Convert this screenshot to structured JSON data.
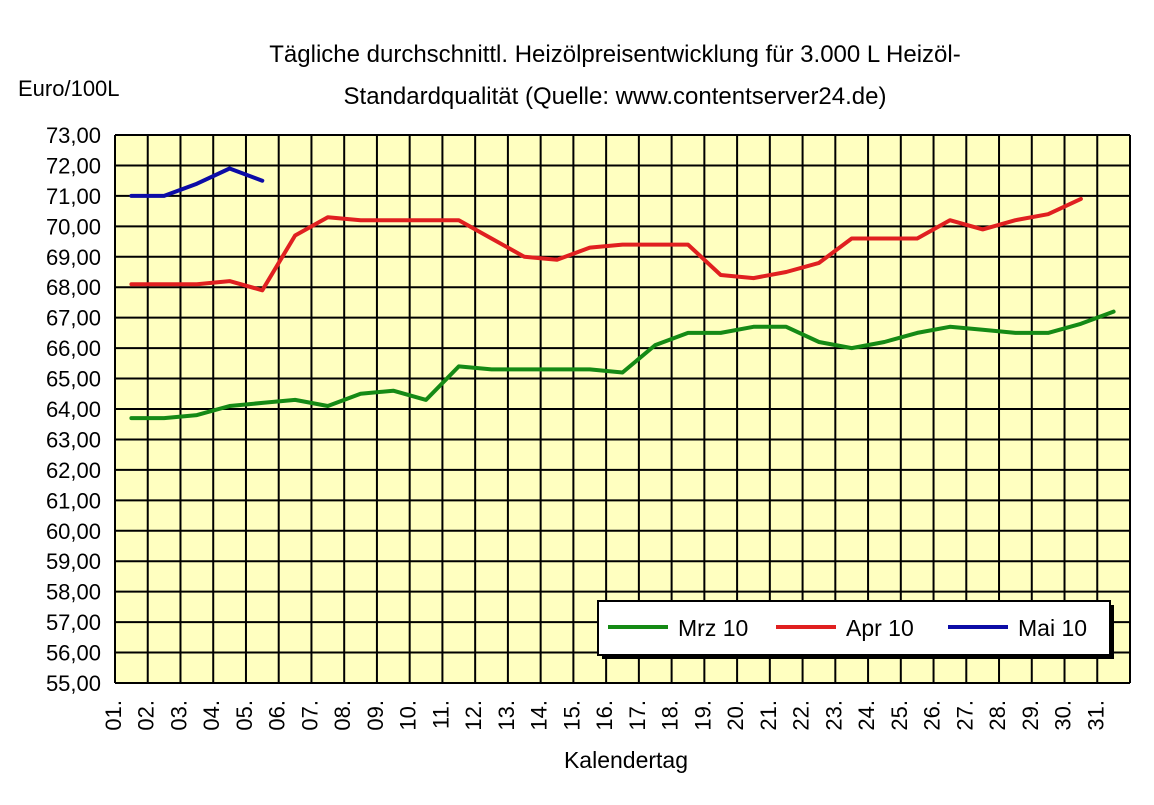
{
  "chart_data": {
    "type": "line",
    "title_line1": "Tägliche durchschnittl. Heizölpreisentwicklung für 3.000 L Heizöl-",
    "title_line2": "Standardqualität (Quelle: www.contentserver24.de)",
    "ylabel": "Euro/100L",
    "xlabel": "Kalendertag",
    "ylim": [
      55,
      73
    ],
    "y_ticks": [
      "55,00",
      "56,00",
      "57,00",
      "58,00",
      "59,00",
      "60,00",
      "61,00",
      "62,00",
      "63,00",
      "64,00",
      "65,00",
      "66,00",
      "67,00",
      "68,00",
      "69,00",
      "70,00",
      "71,00",
      "72,00",
      "73,00"
    ],
    "categories": [
      "01.",
      "02.",
      "03.",
      "04.",
      "05.",
      "06.",
      "07.",
      "08.",
      "09.",
      "10.",
      "11.",
      "12.",
      "13.",
      "14.",
      "15.",
      "16.",
      "17.",
      "18.",
      "19.",
      "20.",
      "21.",
      "22.",
      "23.",
      "24.",
      "25.",
      "26.",
      "27.",
      "28.",
      "29.",
      "30.",
      "31."
    ],
    "grid": true,
    "legend_position": "bottom-right",
    "plot_background": "#ffffc0",
    "series": [
      {
        "name": "Mrz 10",
        "color": "#158a15",
        "values": [
          63.7,
          63.7,
          63.8,
          64.1,
          64.2,
          64.3,
          64.1,
          64.5,
          64.6,
          64.3,
          65.4,
          65.3,
          65.3,
          65.3,
          65.3,
          65.2,
          66.1,
          66.5,
          66.5,
          66.7,
          66.7,
          66.2,
          66.0,
          66.2,
          66.5,
          66.7,
          66.6,
          66.5,
          66.5,
          66.8,
          67.2
        ]
      },
      {
        "name": "Apr 10",
        "color": "#e02020",
        "values": [
          68.1,
          68.1,
          68.1,
          68.2,
          67.9,
          69.7,
          70.3,
          70.2,
          70.2,
          70.2,
          70.2,
          69.6,
          69.0,
          68.9,
          69.3,
          69.4,
          69.4,
          69.4,
          68.4,
          68.3,
          68.5,
          68.8,
          69.6,
          69.6,
          69.6,
          70.2,
          69.9,
          70.2,
          70.4,
          70.9,
          null
        ]
      },
      {
        "name": "Mai 10",
        "color": "#0c0ca6",
        "values": [
          71.0,
          71.0,
          71.4,
          71.9,
          71.5,
          null,
          null,
          null,
          null,
          null,
          null,
          null,
          null,
          null,
          null,
          null,
          null,
          null,
          null,
          null,
          null,
          null,
          null,
          null,
          null,
          null,
          null,
          null,
          null,
          null,
          null
        ]
      }
    ]
  }
}
